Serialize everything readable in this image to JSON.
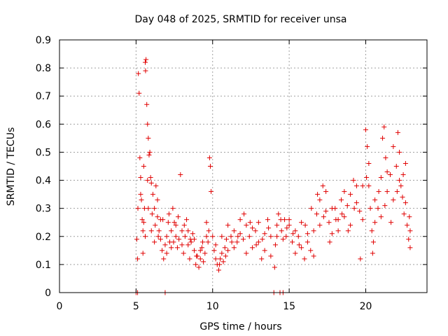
{
  "chart_data": {
    "type": "scatter",
    "title": "Day 048 of 2025, SRMTID for receiver unsa",
    "xlabel": "GPS time / hours",
    "ylabel": "SRMTID / TECUs",
    "xlim": [
      0,
      24
    ],
    "ylim": [
      0,
      0.9
    ],
    "xticks": [
      0,
      5,
      10,
      15,
      20
    ],
    "xtick_labels": [
      "0",
      "5",
      "10",
      "15",
      "20"
    ],
    "yticks": [
      0,
      0.1,
      0.2,
      0.3,
      0.4,
      0.5,
      0.6,
      0.7,
      0.8,
      0.9
    ],
    "ytick_labels": [
      "0",
      "0.1",
      "0.2",
      "0.3",
      "0.4",
      "0.5",
      "0.6",
      "0.7",
      "0.8",
      "0.9"
    ],
    "grid": true,
    "marker": "plus",
    "color": "#e00000",
    "series": [
      {
        "name": "SRMTID",
        "points": [
          [
            5.0,
            0.0
          ],
          [
            5.05,
            0.19
          ],
          [
            5.1,
            0.12
          ],
          [
            5.12,
            0.3
          ],
          [
            5.15,
            0.78
          ],
          [
            5.2,
            0.71
          ],
          [
            5.25,
            0.48
          ],
          [
            5.3,
            0.41
          ],
          [
            5.35,
            0.33
          ],
          [
            5.4,
            0.26
          ],
          [
            5.45,
            0.22
          ],
          [
            5.5,
            0.25
          ],
          [
            5.55,
            0.3
          ],
          [
            5.6,
            0.82
          ],
          [
            5.62,
            0.79
          ],
          [
            5.65,
            0.83
          ],
          [
            5.7,
            0.67
          ],
          [
            5.75,
            0.6
          ],
          [
            5.8,
            0.55
          ],
          [
            5.85,
            0.49
          ],
          [
            5.9,
            0.5
          ],
          [
            5.95,
            0.41
          ],
          [
            6.0,
            0.39
          ],
          [
            6.1,
            0.35
          ],
          [
            6.2,
            0.3
          ],
          [
            6.3,
            0.38
          ],
          [
            6.4,
            0.27
          ],
          [
            6.5,
            0.22
          ],
          [
            6.6,
            0.19
          ],
          [
            6.7,
            0.15
          ],
          [
            6.8,
            0.12
          ],
          [
            6.9,
            0.17
          ],
          [
            7.0,
            0.2
          ],
          [
            7.1,
            0.25
          ],
          [
            7.2,
            0.18
          ],
          [
            7.3,
            0.22
          ],
          [
            7.4,
            0.3
          ],
          [
            7.5,
            0.25
          ],
          [
            7.6,
            0.2
          ],
          [
            7.7,
            0.16
          ],
          [
            7.8,
            0.19
          ],
          [
            7.9,
            0.42
          ],
          [
            8.0,
            0.22
          ],
          [
            8.1,
            0.14
          ],
          [
            8.2,
            0.2
          ],
          [
            8.3,
            0.26
          ],
          [
            8.4,
            0.17
          ],
          [
            8.5,
            0.12
          ],
          [
            8.6,
            0.18
          ],
          [
            8.7,
            0.21
          ],
          [
            8.8,
            0.15
          ],
          [
            8.9,
            0.1
          ],
          [
            9.0,
            0.13
          ],
          [
            9.1,
            0.09
          ],
          [
            9.2,
            0.12
          ],
          [
            9.3,
            0.16
          ],
          [
            9.4,
            0.11
          ],
          [
            9.5,
            0.14
          ],
          [
            9.6,
            0.2
          ],
          [
            9.7,
            0.18
          ],
          [
            9.8,
            0.48
          ],
          [
            9.85,
            0.45
          ],
          [
            9.9,
            0.36
          ],
          [
            10.0,
            0.2
          ],
          [
            10.1,
            0.15
          ],
          [
            10.2,
            0.12
          ],
          [
            10.3,
            0.1
          ],
          [
            10.4,
            0.08
          ],
          [
            10.5,
            0.12
          ],
          [
            10.6,
            0.14
          ],
          [
            10.7,
            0.11
          ],
          [
            10.8,
            0.16
          ],
          [
            10.9,
            0.19
          ],
          [
            11.0,
            0.15
          ],
          [
            11.2,
            0.2
          ],
          [
            11.4,
            0.22
          ],
          [
            11.6,
            0.18
          ],
          [
            11.8,
            0.21
          ],
          [
            12.0,
            0.19
          ],
          [
            12.2,
            0.24
          ],
          [
            12.4,
            0.2
          ],
          [
            12.6,
            0.16
          ],
          [
            12.8,
            0.22
          ],
          [
            13.0,
            0.18
          ],
          [
            13.2,
            0.12
          ],
          [
            13.4,
            0.21
          ],
          [
            13.6,
            0.26
          ],
          [
            13.8,
            0.2
          ],
          [
            14.0,
            0.0
          ],
          [
            14.1,
            0.17
          ],
          [
            14.2,
            0.24
          ],
          [
            14.3,
            0.28
          ],
          [
            14.4,
            0.0
          ],
          [
            14.5,
            0.22
          ],
          [
            14.6,
            0.0
          ],
          [
            14.7,
            0.26
          ],
          [
            14.8,
            0.2
          ],
          [
            15.0,
            0.24
          ],
          [
            15.2,
            0.18
          ],
          [
            15.4,
            0.14
          ],
          [
            15.6,
            0.2
          ],
          [
            15.8,
            0.16
          ],
          [
            16.0,
            0.12
          ],
          [
            16.2,
            0.18
          ],
          [
            16.4,
            0.15
          ],
          [
            16.6,
            0.22
          ],
          [
            16.8,
            0.28
          ],
          [
            17.0,
            0.33
          ],
          [
            17.2,
            0.38
          ],
          [
            17.4,
            0.29
          ],
          [
            17.6,
            0.25
          ],
          [
            17.8,
            0.21
          ],
          [
            18.0,
            0.3
          ],
          [
            18.2,
            0.26
          ],
          [
            18.4,
            0.33
          ],
          [
            18.6,
            0.27
          ],
          [
            18.8,
            0.31
          ],
          [
            19.0,
            0.35
          ],
          [
            19.2,
            0.4
          ],
          [
            19.4,
            0.32
          ],
          [
            19.6,
            0.29
          ],
          [
            19.8,
            0.38
          ],
          [
            20.0,
            0.58
          ],
          [
            20.1,
            0.52
          ],
          [
            20.2,
            0.46
          ],
          [
            20.3,
            0.3
          ],
          [
            20.4,
            0.22
          ],
          [
            20.5,
            0.18
          ],
          [
            20.6,
            0.25
          ],
          [
            20.8,
            0.3
          ],
          [
            21.0,
            0.41
          ],
          [
            21.1,
            0.55
          ],
          [
            21.2,
            0.59
          ],
          [
            21.3,
            0.48
          ],
          [
            21.4,
            0.36
          ],
          [
            21.6,
            0.42
          ],
          [
            21.8,
            0.33
          ],
          [
            22.0,
            0.45
          ],
          [
            22.1,
            0.57
          ],
          [
            22.2,
            0.5
          ],
          [
            22.3,
            0.38
          ],
          [
            22.4,
            0.34
          ],
          [
            22.5,
            0.28
          ],
          [
            22.6,
            0.46
          ],
          [
            22.7,
            0.24
          ],
          [
            22.8,
            0.19
          ],
          [
            22.9,
            0.16
          ],
          [
            6.9,
            0.0
          ],
          [
            5.3,
            0.35
          ],
          [
            5.5,
            0.45
          ],
          [
            5.8,
            0.3
          ],
          [
            6.0,
            0.22
          ],
          [
            6.2,
            0.18
          ],
          [
            6.4,
            0.33
          ],
          [
            6.6,
            0.26
          ],
          [
            7.0,
            0.14
          ],
          [
            7.3,
            0.16
          ],
          [
            7.6,
            0.24
          ],
          [
            8.0,
            0.17
          ],
          [
            8.4,
            0.22
          ],
          [
            8.8,
            0.19
          ],
          [
            9.2,
            0.15
          ],
          [
            9.6,
            0.25
          ],
          [
            10.2,
            0.17
          ],
          [
            10.6,
            0.2
          ],
          [
            11.0,
            0.24
          ],
          [
            11.4,
            0.16
          ],
          [
            11.8,
            0.26
          ],
          [
            12.2,
            0.14
          ],
          [
            12.6,
            0.23
          ],
          [
            13.0,
            0.25
          ],
          [
            13.4,
            0.15
          ],
          [
            13.8,
            0.13
          ],
          [
            14.2,
            0.2
          ],
          [
            14.6,
            0.19
          ],
          [
            15.0,
            0.26
          ],
          [
            15.4,
            0.22
          ],
          [
            15.8,
            0.25
          ],
          [
            16.2,
            0.21
          ],
          [
            16.6,
            0.13
          ],
          [
            17.0,
            0.24
          ],
          [
            17.4,
            0.36
          ],
          [
            17.8,
            0.3
          ],
          [
            18.2,
            0.22
          ],
          [
            18.6,
            0.36
          ],
          [
            19.0,
            0.24
          ],
          [
            19.4,
            0.38
          ],
          [
            19.8,
            0.26
          ],
          [
            20.2,
            0.38
          ],
          [
            20.6,
            0.33
          ],
          [
            21.0,
            0.27
          ],
          [
            21.4,
            0.43
          ],
          [
            21.8,
            0.52
          ],
          [
            22.2,
            0.4
          ],
          [
            22.6,
            0.32
          ],
          [
            22.9,
            0.22
          ],
          [
            5.45,
            0.14
          ],
          [
            5.6,
            0.2
          ],
          [
            5.75,
            0.4
          ],
          [
            6.05,
            0.28
          ],
          [
            6.25,
            0.24
          ],
          [
            6.45,
            0.2
          ],
          [
            6.75,
            0.26
          ],
          [
            7.15,
            0.28
          ],
          [
            7.45,
            0.18
          ],
          [
            7.75,
            0.27
          ],
          [
            8.15,
            0.24
          ],
          [
            8.55,
            0.19
          ],
          [
            8.95,
            0.13
          ],
          [
            9.35,
            0.18
          ],
          [
            9.75,
            0.22
          ],
          [
            10.45,
            0.1
          ],
          [
            10.85,
            0.13
          ],
          [
            11.25,
            0.18
          ],
          [
            11.65,
            0.2
          ],
          [
            12.05,
            0.28
          ],
          [
            12.45,
            0.25
          ],
          [
            12.85,
            0.17
          ],
          [
            13.25,
            0.19
          ],
          [
            13.65,
            0.23
          ],
          [
            14.05,
            0.09
          ],
          [
            14.45,
            0.26
          ],
          [
            14.85,
            0.23
          ],
          [
            15.25,
            0.21
          ],
          [
            15.65,
            0.17
          ],
          [
            16.05,
            0.24
          ],
          [
            16.45,
            0.3
          ],
          [
            16.85,
            0.35
          ],
          [
            17.25,
            0.27
          ],
          [
            17.65,
            0.18
          ],
          [
            18.05,
            0.26
          ],
          [
            18.45,
            0.28
          ],
          [
            18.85,
            0.22
          ],
          [
            19.25,
            0.3
          ],
          [
            19.65,
            0.12
          ],
          [
            20.05,
            0.41
          ],
          [
            20.45,
            0.14
          ],
          [
            20.85,
            0.36
          ],
          [
            21.25,
            0.31
          ],
          [
            21.65,
            0.25
          ],
          [
            22.05,
            0.36
          ],
          [
            22.45,
            0.42
          ],
          [
            22.85,
            0.27
          ],
          [
            5.1,
            0.0
          ]
        ]
      }
    ]
  }
}
